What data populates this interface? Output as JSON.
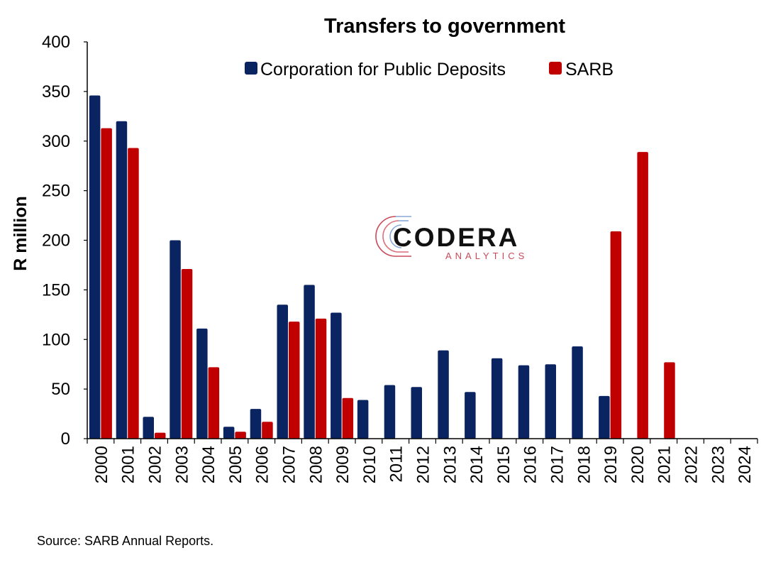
{
  "chart_data": {
    "type": "bar",
    "title": "Transfers to government",
    "ylabel": "R million",
    "xlabel": "",
    "ylim": [
      0,
      400
    ],
    "yticks": [
      0,
      50,
      100,
      150,
      200,
      250,
      300,
      350,
      400
    ],
    "legend_position": "top-center",
    "grid": false,
    "categories": [
      "2000",
      "2001",
      "2002",
      "2003",
      "2004",
      "2005",
      "2006",
      "2007",
      "2008",
      "2009",
      "2010",
      "2011",
      "2012",
      "2013",
      "2014",
      "2015",
      "2016",
      "2017",
      "2018",
      "2019",
      "2020",
      "2021",
      "2022",
      "2023",
      "2024"
    ],
    "series": [
      {
        "name": "Corporation for Public Deposits",
        "color": "#0a2462",
        "values": [
          346,
          320,
          22,
          200,
          111,
          12,
          30,
          135,
          155,
          127,
          39,
          54,
          52,
          89,
          47,
          81,
          74,
          75,
          93,
          43,
          null,
          null,
          null,
          null,
          null
        ]
      },
      {
        "name": "SARB",
        "color": "#c00000",
        "values": [
          313,
          293,
          6,
          171,
          72,
          7,
          17,
          118,
          121,
          41,
          null,
          null,
          null,
          null,
          null,
          null,
          null,
          null,
          null,
          209,
          289,
          77,
          null,
          null,
          null
        ]
      }
    ]
  },
  "logo": {
    "name": "CODERA",
    "sub": "ANALYTICS",
    "name_color": "#111111",
    "sub_color": "#c84a5a"
  },
  "source": "Source: SARB Annual Reports."
}
